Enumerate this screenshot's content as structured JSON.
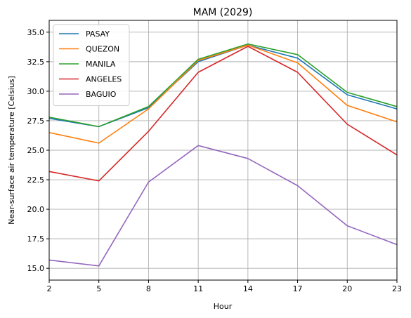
{
  "chart_data": {
    "type": "line",
    "title": "MAM (2029)",
    "xlabel": "Hour",
    "ylabel": "Near-surface air temperature [Celsius]",
    "x": [
      2,
      5,
      8,
      11,
      14,
      17,
      20,
      23
    ],
    "xlim": [
      2,
      23
    ],
    "ylim": [
      14.0,
      36.0
    ],
    "xticks": [
      "2",
      "5",
      "8",
      "11",
      "14",
      "17",
      "20",
      "23"
    ],
    "yticks": [
      "15.0",
      "17.5",
      "20.0",
      "22.5",
      "25.0",
      "27.5",
      "30.0",
      "32.5",
      "35.0"
    ],
    "grid": true,
    "legend_position": "top-left",
    "series": [
      {
        "name": "PASAY",
        "color": "#1f77b4",
        "values": [
          27.7,
          27.0,
          28.6,
          32.5,
          33.9,
          32.8,
          29.7,
          28.5
        ]
      },
      {
        "name": "QUEZON",
        "color": "#ff7f0e",
        "values": [
          26.5,
          25.6,
          28.5,
          32.6,
          33.9,
          32.4,
          28.8,
          27.4
        ]
      },
      {
        "name": "MANILA",
        "color": "#2ca02c",
        "values": [
          27.8,
          27.0,
          28.7,
          32.7,
          34.0,
          33.1,
          29.9,
          28.7
        ]
      },
      {
        "name": "ANGELES",
        "color": "#d62728",
        "values": [
          23.2,
          22.4,
          26.6,
          31.6,
          33.8,
          31.6,
          27.2,
          24.6
        ]
      },
      {
        "name": "BAGUIO",
        "color": "#9467bd",
        "values": [
          15.7,
          15.2,
          22.3,
          25.4,
          24.3,
          22.0,
          18.6,
          17.0
        ]
      }
    ]
  }
}
